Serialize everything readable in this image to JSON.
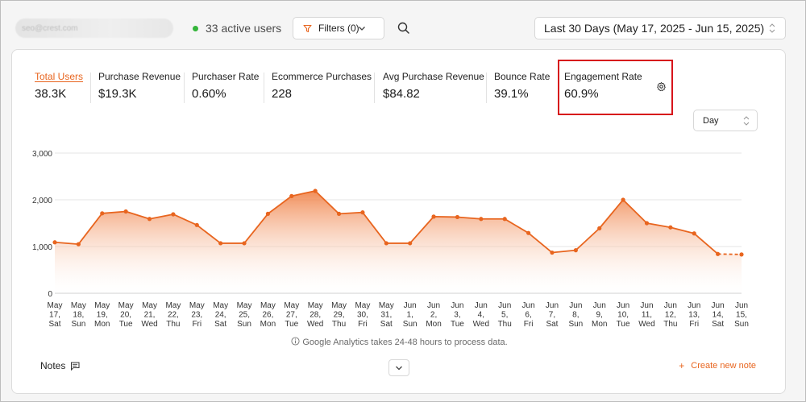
{
  "header": {
    "account_placeholder": "seo@crest.com",
    "active_users": "33 active users",
    "filters_label": "Filters (0)",
    "date_range": "Last 30 Days (May 17, 2025 - Jun 15, 2025)"
  },
  "metrics": [
    {
      "label": "Total Users",
      "value": "38.3K",
      "active": true
    },
    {
      "label": "Purchase Revenue",
      "value": "$19.3K"
    },
    {
      "label": "Purchaser Rate",
      "value": "0.60%"
    },
    {
      "label": "Ecommerce Purchases",
      "value": "228"
    },
    {
      "label": "Avg Purchase Revenue",
      "value": "$84.82"
    },
    {
      "label": "Bounce Rate",
      "value": "39.1%"
    },
    {
      "label": "Engagement Rate",
      "value": "60.9%"
    }
  ],
  "granularity": "Day",
  "colors": {
    "accent": "#e8651f",
    "highlight": "#d7141b",
    "active_dot": "#34b53a"
  },
  "chart_data": {
    "type": "area",
    "ylim": [
      0,
      3000
    ],
    "yticks": [
      "0",
      "1,000",
      "2,000",
      "3,000"
    ],
    "categories": [
      [
        "May",
        "17,",
        "Sat"
      ],
      [
        "May",
        "18,",
        "Sun"
      ],
      [
        "May",
        "19,",
        "Mon"
      ],
      [
        "May",
        "20,",
        "Tue"
      ],
      [
        "May",
        "21,",
        "Wed"
      ],
      [
        "May",
        "22,",
        "Thu"
      ],
      [
        "May",
        "23,",
        "Fri"
      ],
      [
        "May",
        "24,",
        "Sat"
      ],
      [
        "May",
        "25,",
        "Sun"
      ],
      [
        "May",
        "26,",
        "Mon"
      ],
      [
        "May",
        "27,",
        "Tue"
      ],
      [
        "May",
        "28,",
        "Wed"
      ],
      [
        "May",
        "29,",
        "Thu"
      ],
      [
        "May",
        "30,",
        "Fri"
      ],
      [
        "May",
        "31,",
        "Sat"
      ],
      [
        "Jun",
        "1,",
        "Sun"
      ],
      [
        "Jun",
        "2,",
        "Mon"
      ],
      [
        "Jun",
        "3,",
        "Tue"
      ],
      [
        "Jun",
        "4,",
        "Wed"
      ],
      [
        "Jun",
        "5,",
        "Thu"
      ],
      [
        "Jun",
        "6,",
        "Fri"
      ],
      [
        "Jun",
        "7,",
        "Sat"
      ],
      [
        "Jun",
        "8,",
        "Sun"
      ],
      [
        "Jun",
        "9,",
        "Mon"
      ],
      [
        "Jun",
        "10,",
        "Tue"
      ],
      [
        "Jun",
        "11,",
        "Wed"
      ],
      [
        "Jun",
        "12,",
        "Thu"
      ],
      [
        "Jun",
        "13,",
        "Fri"
      ],
      [
        "Jun",
        "14,",
        "Sat"
      ],
      [
        "Jun",
        "15,",
        "Sun"
      ]
    ],
    "series": [
      {
        "values": [
          1090,
          1050,
          1710,
          1750,
          1590,
          1690,
          1460,
          1070,
          1070,
          1700,
          2080,
          2190,
          1700,
          1730,
          1070,
          1070,
          1640,
          1630,
          1590,
          1590,
          1290,
          870,
          920,
          1390,
          2000,
          1500,
          1410,
          1280,
          840,
          830
        ]
      }
    ],
    "last_segment_dashed": true
  },
  "footer": {
    "processing_note": "Google Analytics takes 24-48 hours to process data.",
    "notes_label": "Notes",
    "create_note": "Create new note"
  }
}
